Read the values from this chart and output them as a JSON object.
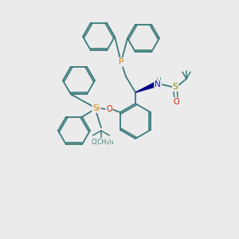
{
  "background_color": "#ebebeb",
  "bond_color": "#3a7a7a",
  "atom_colors": {
    "P": "#cc8800",
    "Si": "#cc8800",
    "O": "#cc2200",
    "N": "#1111cc",
    "S": "#888800",
    "H": "#5a8a80",
    "C": "#3a7a7a"
  },
  "figsize": [
    3.0,
    3.0
  ],
  "dpi": 100
}
